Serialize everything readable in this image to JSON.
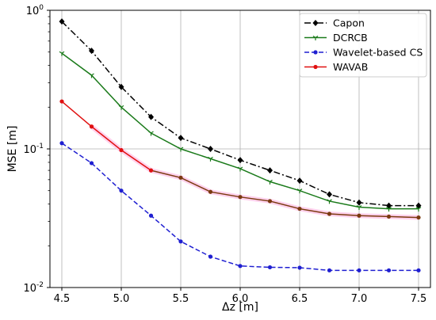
{
  "chart_data": {
    "type": "line",
    "xlabel": "Δz [m]",
    "ylabel": "MSE [m]",
    "xlim": [
      4.4,
      7.6
    ],
    "ylim": [
      0.01,
      1
    ],
    "yscale": "log",
    "grid": true,
    "legend_position": "top-right",
    "x": [
      4.5,
      4.75,
      5.0,
      5.25,
      5.5,
      5.75,
      6.0,
      6.25,
      6.5,
      6.75,
      7.0,
      7.25,
      7.5
    ],
    "x_ticks": [
      4.5,
      5.0,
      5.5,
      6.0,
      6.5,
      7.0,
      7.5
    ],
    "x_tick_labels": [
      "4.5",
      "5.0",
      "5.5",
      "6.0",
      "6.5",
      "7.0",
      "7.5"
    ],
    "y_ticks": [
      0.01,
      0.1,
      1
    ],
    "y_tick_labels": [
      {
        "base": "10",
        "exp": "-2"
      },
      {
        "base": "10",
        "exp": "-1"
      },
      {
        "base": "10",
        "exp": "0"
      }
    ],
    "series": [
      {
        "name": "Capon",
        "color": "#000000",
        "line_style": "dashdot",
        "marker": "diamond",
        "values": [
          0.83,
          0.51,
          0.28,
          0.17,
          0.12,
          0.1,
          0.083,
          0.07,
          0.059,
          0.047,
          0.041,
          0.039,
          0.039
        ]
      },
      {
        "name": "DCRCB",
        "color": "#1a7a1a",
        "line_style": "solid",
        "marker": "tri-down",
        "values": [
          0.49,
          0.34,
          0.2,
          0.13,
          0.1,
          0.085,
          0.072,
          0.058,
          0.05,
          0.042,
          0.038,
          0.037,
          0.037
        ]
      },
      {
        "name": "Wavelet-based CS",
        "color": "#1f1fd1",
        "line_style": "dashed",
        "marker": "dot",
        "values": [
          0.11,
          0.079,
          0.05,
          0.033,
          0.0215,
          0.0167,
          0.0143,
          0.014,
          0.0139,
          0.0133,
          0.0133,
          0.0133,
          0.0133
        ]
      },
      {
        "name": "WAVAB",
        "color": "#e01010",
        "color_secondary": "#7a3a10",
        "line_style": "solid",
        "marker": "dot",
        "values": [
          0.22,
          0.145,
          0.098,
          0.07,
          0.062,
          0.049,
          0.045,
          0.042,
          0.037,
          0.034,
          0.033,
          0.0325,
          0.032
        ]
      }
    ]
  }
}
